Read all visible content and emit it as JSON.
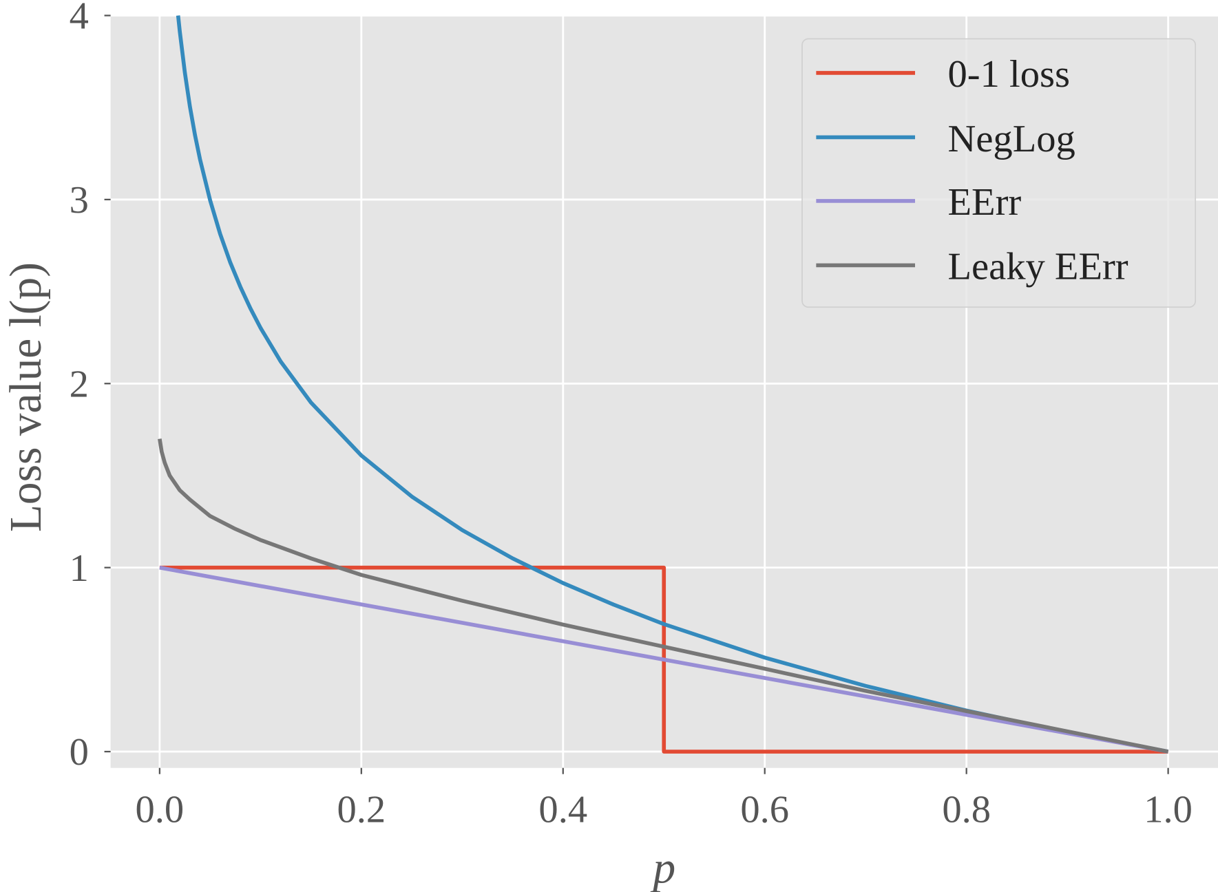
{
  "chart_data": {
    "type": "line",
    "title": "",
    "xlabel": "p",
    "ylabel": "Loss value l(p)",
    "xlim": [
      -0.05,
      1.05
    ],
    "ylim": [
      -0.09,
      4.0
    ],
    "xticks": [
      0.0,
      0.2,
      0.4,
      0.6,
      0.8,
      1.0
    ],
    "xtick_labels": [
      "0.0",
      "0.2",
      "0.4",
      "0.6",
      "0.8",
      "1.0"
    ],
    "yticks": [
      0,
      1,
      2,
      3,
      4
    ],
    "ytick_labels": [
      "0",
      "1",
      "2",
      "3",
      "4"
    ],
    "grid": true,
    "legend_position": "top-right",
    "series": [
      {
        "name": "0-1 loss",
        "color": "#E24A33",
        "x": [
          0,
          0.5,
          0.5,
          1.0
        ],
        "y": [
          1,
          1,
          0,
          0
        ]
      },
      {
        "name": "NegLog",
        "color": "#348ABD",
        "x": [
          0.0183,
          0.02,
          0.025,
          0.03,
          0.035,
          0.04,
          0.05,
          0.06,
          0.07,
          0.08,
          0.09,
          0.1,
          0.12,
          0.15,
          0.2,
          0.25,
          0.3,
          0.35,
          0.4,
          0.45,
          0.5,
          0.6,
          0.7,
          0.8,
          0.9,
          1.0
        ],
        "y": [
          4.0,
          3.912,
          3.689,
          3.507,
          3.352,
          3.219,
          2.996,
          2.813,
          2.659,
          2.526,
          2.408,
          2.303,
          2.12,
          1.897,
          1.609,
          1.386,
          1.204,
          1.05,
          0.916,
          0.799,
          0.693,
          0.511,
          0.357,
          0.223,
          0.105,
          0
        ]
      },
      {
        "name": "EErr",
        "color": "#988ED5",
        "x": [
          0,
          1.0
        ],
        "y": [
          1,
          0
        ]
      },
      {
        "name": "Leaky EErr",
        "color": "#777777",
        "x": [
          0,
          0.002,
          0.005,
          0.01,
          0.02,
          0.03,
          0.05,
          0.075,
          0.1,
          0.15,
          0.2,
          0.3,
          0.4,
          0.5,
          0.6,
          0.7,
          0.8,
          0.9,
          1.0
        ],
        "y": [
          1.7,
          1.63,
          1.57,
          1.5,
          1.42,
          1.37,
          1.28,
          1.21,
          1.15,
          1.05,
          0.96,
          0.82,
          0.69,
          0.57,
          0.45,
          0.33,
          0.22,
          0.11,
          0
        ]
      }
    ]
  }
}
